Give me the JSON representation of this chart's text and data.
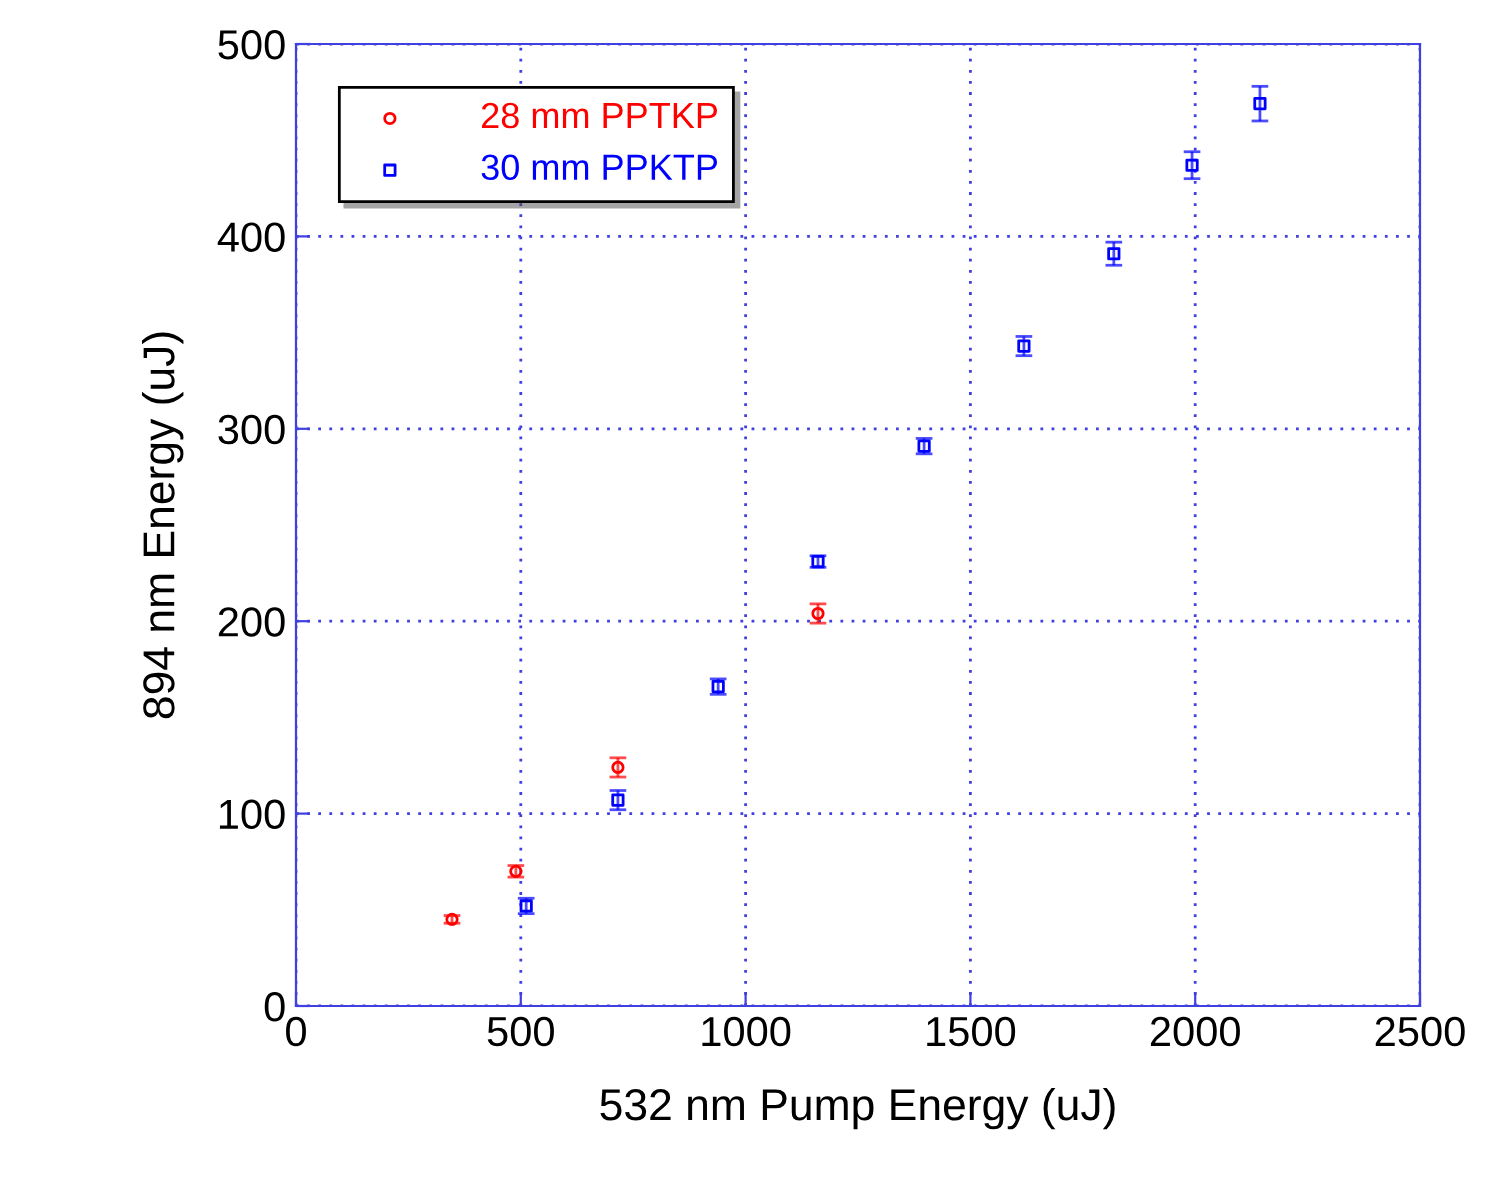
{
  "chart_data": {
    "type": "scatter",
    "xlabel": "532 nm Pump Energy (uJ)",
    "ylabel": "894 nm Energy (uJ)",
    "xlim": [
      0,
      2500
    ],
    "xticks": [
      0,
      500,
      1000,
      1500,
      2000,
      2500
    ],
    "ylim": [
      0,
      500
    ],
    "yticks": [
      0,
      100,
      200,
      300,
      400,
      500
    ],
    "grid": true,
    "legend": "top left",
    "series": [
      {
        "name": "28 mm PPTKP",
        "color": "#ff0000",
        "marker": "circle",
        "x": [
          347,
          489,
          716,
          1161
        ],
        "values": [
          45,
          70,
          124,
          204
        ],
        "errors": [
          2,
          3,
          5,
          5
        ]
      },
      {
        "name": "30 mm PPKTP",
        "color": "#0000ff",
        "marker": "square",
        "x": [
          512,
          716,
          939,
          1161,
          1397,
          1619,
          1819,
          1993,
          2144
        ],
        "values": [
          52,
          107,
          166,
          231,
          291,
          343,
          391,
          437,
          469
        ],
        "errors": [
          4,
          5,
          4,
          3,
          4,
          5,
          6,
          7,
          9
        ]
      }
    ]
  }
}
